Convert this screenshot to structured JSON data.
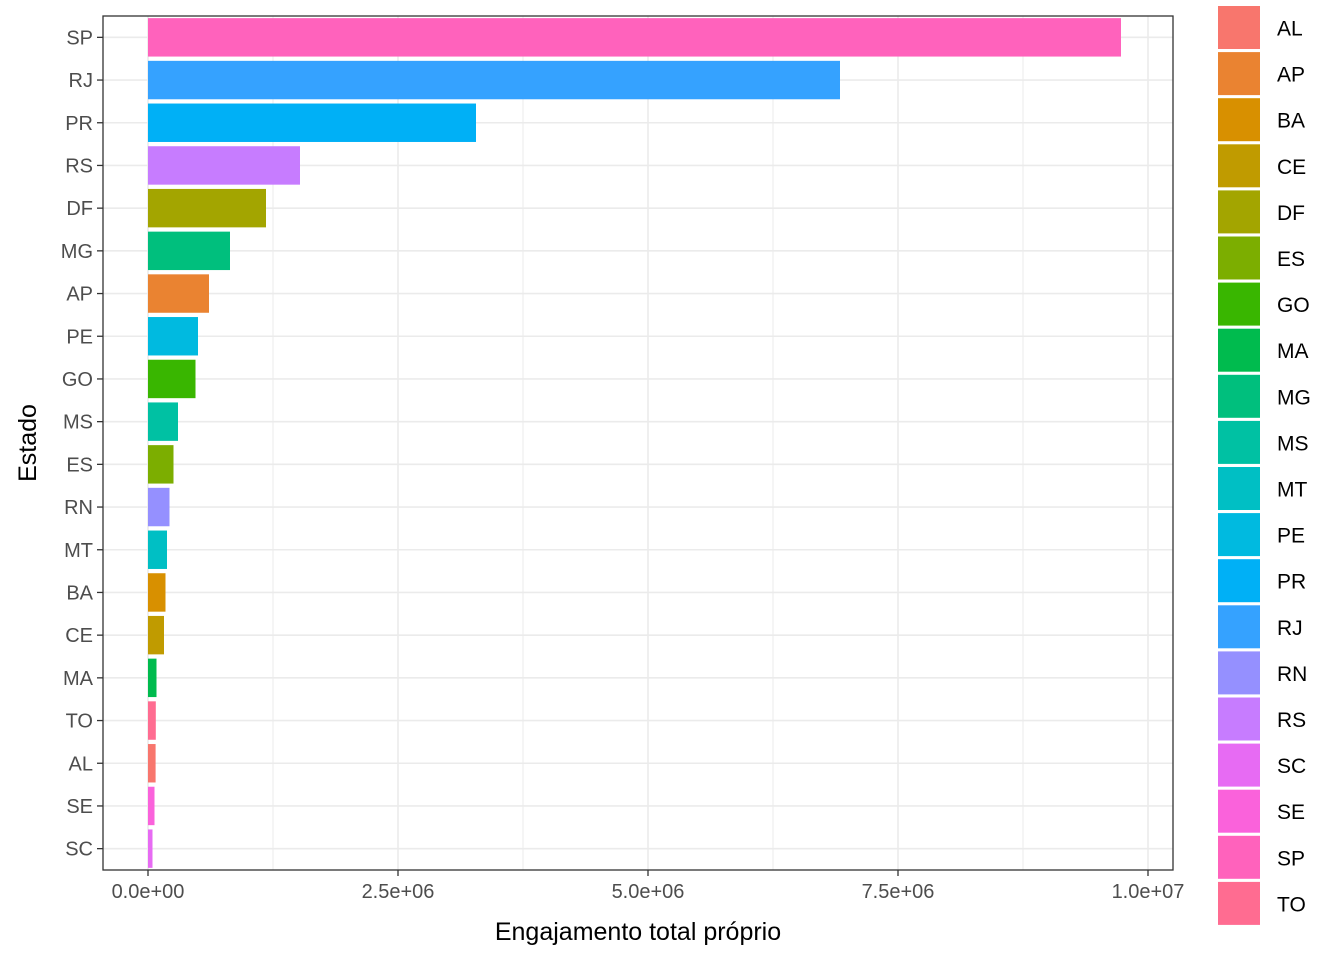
{
  "chart_data": {
    "type": "bar",
    "orientation": "horizontal",
    "xlabel": "Engajamento total próprio",
    "ylabel": "Estado",
    "xlim": [
      -450000,
      10250000
    ],
    "x_ticks": [
      0,
      2500000,
      5000000,
      7500000,
      10000000
    ],
    "x_tick_labels": [
      "0.0e+00",
      "2.5e+06",
      "5.0e+06",
      "7.5e+06",
      "1.0e+07"
    ],
    "grid": true,
    "legend_position": "right",
    "categories": [
      "SP",
      "RJ",
      "PR",
      "RS",
      "DF",
      "MG",
      "AP",
      "PE",
      "GO",
      "MS",
      "ES",
      "RN",
      "MT",
      "BA",
      "CE",
      "MA",
      "TO",
      "AL",
      "SE",
      "SC"
    ],
    "values": [
      9730000,
      6920000,
      3280000,
      1520000,
      1180000,
      820000,
      610000,
      500000,
      475000,
      300000,
      255000,
      215000,
      190000,
      175000,
      160000,
      85000,
      78000,
      76000,
      65000,
      45000
    ],
    "legend": [
      {
        "label": "AL",
        "color": "#F8766D"
      },
      {
        "label": "AP",
        "color": "#EA8331"
      },
      {
        "label": "BA",
        "color": "#D89000"
      },
      {
        "label": "CE",
        "color": "#C09B00"
      },
      {
        "label": "DF",
        "color": "#A3A500"
      },
      {
        "label": "ES",
        "color": "#7CAE00"
      },
      {
        "label": "GO",
        "color": "#39B600"
      },
      {
        "label": "MA",
        "color": "#00BB4E"
      },
      {
        "label": "MG",
        "color": "#00BF7D"
      },
      {
        "label": "MS",
        "color": "#00C1A3"
      },
      {
        "label": "MT",
        "color": "#00BFC4"
      },
      {
        "label": "PE",
        "color": "#00BAE0"
      },
      {
        "label": "PR",
        "color": "#00B0F6"
      },
      {
        "label": "RJ",
        "color": "#35A2FF"
      },
      {
        "label": "RN",
        "color": "#9590FF"
      },
      {
        "label": "RS",
        "color": "#C77CFF"
      },
      {
        "label": "SC",
        "color": "#E76BF3"
      },
      {
        "label": "SE",
        "color": "#FA62DB"
      },
      {
        "label": "SP",
        "color": "#FF62BC"
      },
      {
        "label": "TO",
        "color": "#FF6C91"
      }
    ]
  }
}
